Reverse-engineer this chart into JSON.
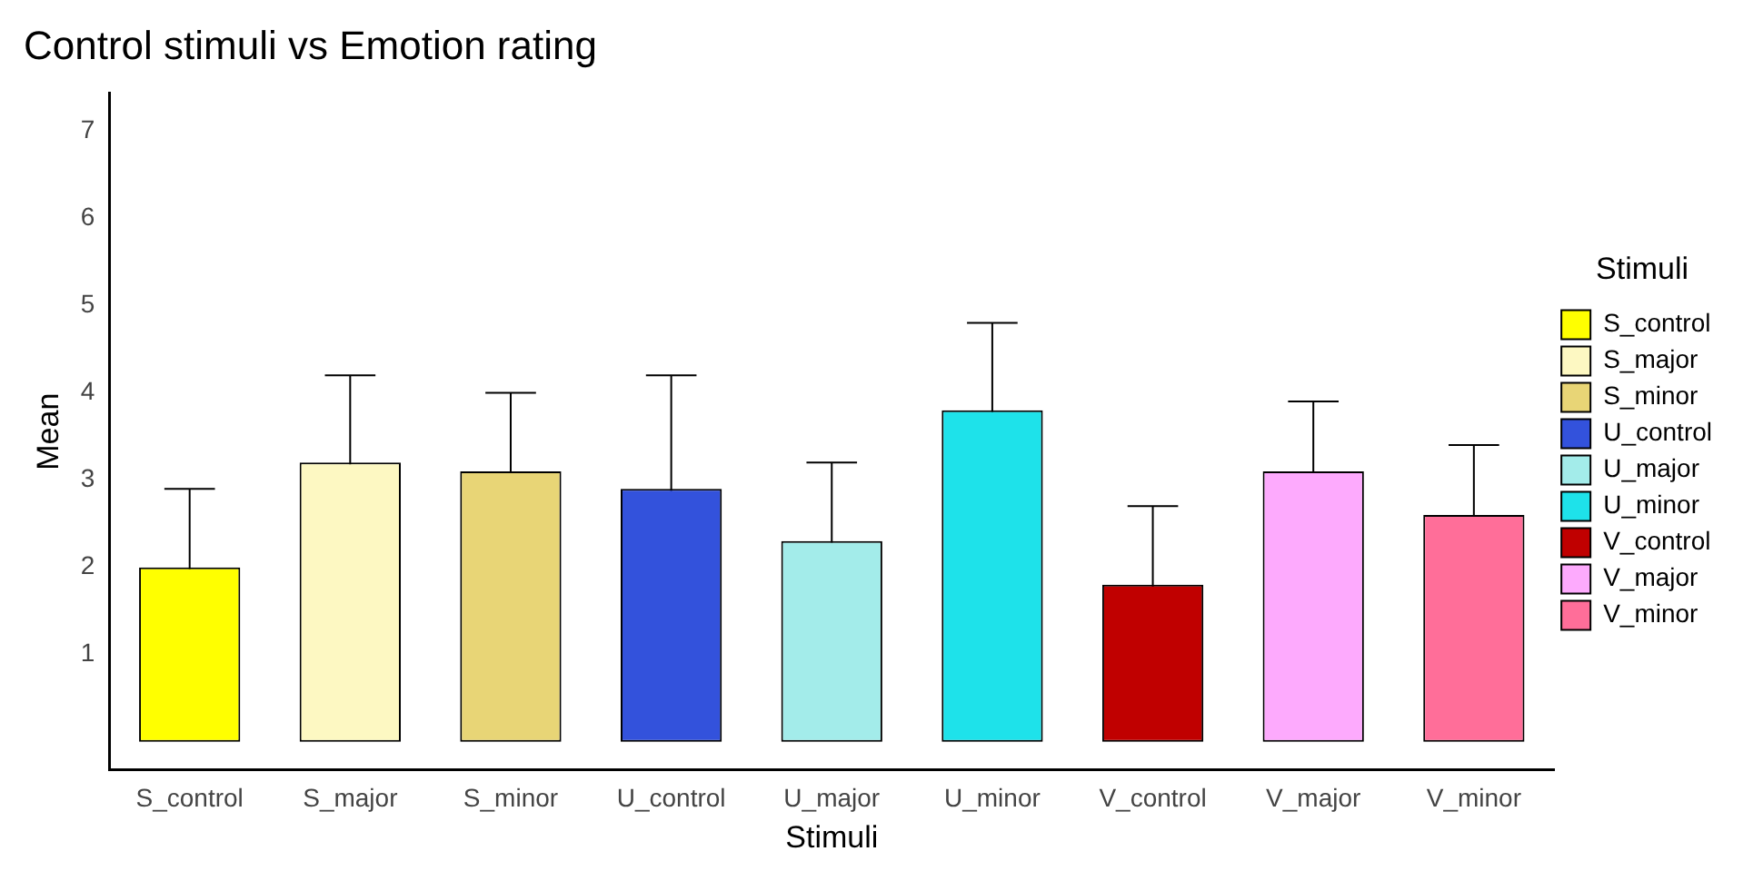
{
  "chart_data": {
    "type": "bar",
    "title": "Control stimuli vs Emotion rating",
    "xlabel": "Stimuli",
    "ylabel": "Mean",
    "legend_title": "Stimuli",
    "legend": "right",
    "categories": [
      "S_control",
      "S_major",
      "S_minor",
      "U_control",
      "U_major",
      "U_minor",
      "V_control",
      "V_major",
      "V_minor"
    ],
    "series": [
      {
        "name": "S_control",
        "color": "#ffff00",
        "values": [
          2.0,
          null,
          null,
          null,
          null,
          null,
          null,
          null,
          null
        ],
        "errors": [
          0.9,
          null,
          null,
          null,
          null,
          null,
          null,
          null,
          null
        ]
      },
      {
        "name": "S_major",
        "color": "#fdf8c2",
        "values": [
          null,
          3.2,
          null,
          null,
          null,
          null,
          null,
          null,
          null
        ],
        "errors": [
          null,
          1.0,
          null,
          null,
          null,
          null,
          null,
          null,
          null
        ]
      },
      {
        "name": "S_minor",
        "color": "#e8d576",
        "values": [
          null,
          null,
          3.1,
          null,
          null,
          null,
          null,
          null,
          null
        ],
        "errors": [
          null,
          null,
          0.9,
          null,
          null,
          null,
          null,
          null,
          null
        ]
      },
      {
        "name": "U_control",
        "color": "#3352dc",
        "values": [
          null,
          null,
          null,
          2.9,
          null,
          null,
          null,
          null,
          null
        ],
        "errors": [
          null,
          null,
          null,
          1.3,
          null,
          null,
          null,
          null,
          null
        ]
      },
      {
        "name": "U_major",
        "color": "#a3ecea",
        "values": [
          null,
          null,
          null,
          null,
          2.3,
          null,
          null,
          null,
          null
        ],
        "errors": [
          null,
          null,
          null,
          null,
          0.9,
          null,
          null,
          null,
          null
        ]
      },
      {
        "name": "U_minor",
        "color": "#1ee2ea",
        "values": [
          null,
          null,
          null,
          null,
          null,
          3.8,
          null,
          null,
          null
        ],
        "errors": [
          null,
          null,
          null,
          null,
          null,
          1.0,
          null,
          null,
          null
        ]
      },
      {
        "name": "V_control",
        "color": "#c00000",
        "values": [
          null,
          null,
          null,
          null,
          null,
          null,
          1.8,
          null,
          null
        ],
        "errors": [
          null,
          null,
          null,
          null,
          null,
          null,
          0.9,
          null,
          null
        ]
      },
      {
        "name": "V_major",
        "color": "#fdaafd",
        "values": [
          null,
          null,
          null,
          null,
          null,
          null,
          null,
          3.1,
          null
        ],
        "errors": [
          null,
          null,
          null,
          null,
          null,
          null,
          null,
          0.8,
          null
        ]
      },
      {
        "name": "V_minor",
        "color": "#ff6e99",
        "values": [
          null,
          null,
          null,
          null,
          null,
          null,
          null,
          null,
          2.6
        ],
        "errors": [
          null,
          null,
          null,
          null,
          null,
          null,
          null,
          null,
          0.8
        ]
      }
    ],
    "ylim": [
      -0.32,
      7.43
    ],
    "yticks": [
      1,
      2,
      3,
      4,
      5,
      6,
      7
    ]
  }
}
